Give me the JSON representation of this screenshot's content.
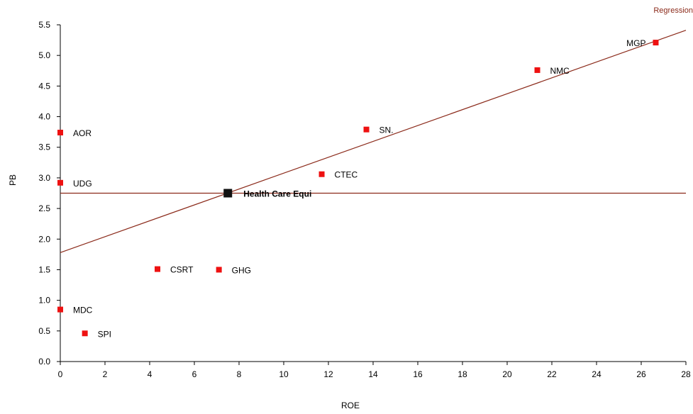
{
  "chart_data": {
    "type": "scatter",
    "title": "",
    "xlabel": "ROE",
    "ylabel": "PB",
    "xlim": [
      0,
      28
    ],
    "ylim": [
      0,
      5.5
    ],
    "x_ticks": [
      0,
      2,
      4,
      6,
      8,
      10,
      12,
      14,
      16,
      18,
      20,
      22,
      24,
      26,
      28
    ],
    "y_ticks": [
      0.0,
      0.5,
      1.0,
      1.5,
      2.0,
      2.5,
      3.0,
      3.5,
      4.0,
      4.5,
      5.0,
      5.5
    ],
    "x_tick_labels": [
      "0",
      "2",
      "4",
      "6",
      "8",
      "10",
      "12",
      "14",
      "16",
      "18",
      "20",
      "22",
      "24",
      "26",
      "28"
    ],
    "y_tick_labels": [
      "0.0",
      "0.5",
      "1.0",
      "1.5",
      "2.0",
      "2.5",
      "3.0",
      "3.5",
      "4.0",
      "4.5",
      "5.0",
      "5.5"
    ],
    "grid": false,
    "point_color": "#ee1111",
    "line_color": "#8b2a1a",
    "points": [
      {
        "label": "AOR",
        "x": 0.0,
        "y": 3.74
      },
      {
        "label": "UDG",
        "x": 0.0,
        "y": 2.92
      },
      {
        "label": "MDC",
        "x": 0.0,
        "y": 0.85
      },
      {
        "label": "SPI",
        "x": 1.1,
        "y": 0.46
      },
      {
        "label": "CSRT",
        "x": 4.35,
        "y": 1.51
      },
      {
        "label": "GHG",
        "x": 7.1,
        "y": 1.5
      },
      {
        "label": "CTEC",
        "x": 11.7,
        "y": 3.06
      },
      {
        "label": "SN.",
        "x": 13.7,
        "y": 3.79
      },
      {
        "label": "NMC",
        "x": 21.35,
        "y": 4.76
      },
      {
        "label": "MGP",
        "x": 26.65,
        "y": 5.21
      }
    ],
    "highlight": {
      "label": "Health Care Equi",
      "x": 7.5,
      "y": 2.75,
      "color": "#111111"
    },
    "reference_line": {
      "y": 2.75
    },
    "regression": {
      "label": "Regression",
      "intercept": 1.78,
      "slope": 0.1297
    }
  }
}
